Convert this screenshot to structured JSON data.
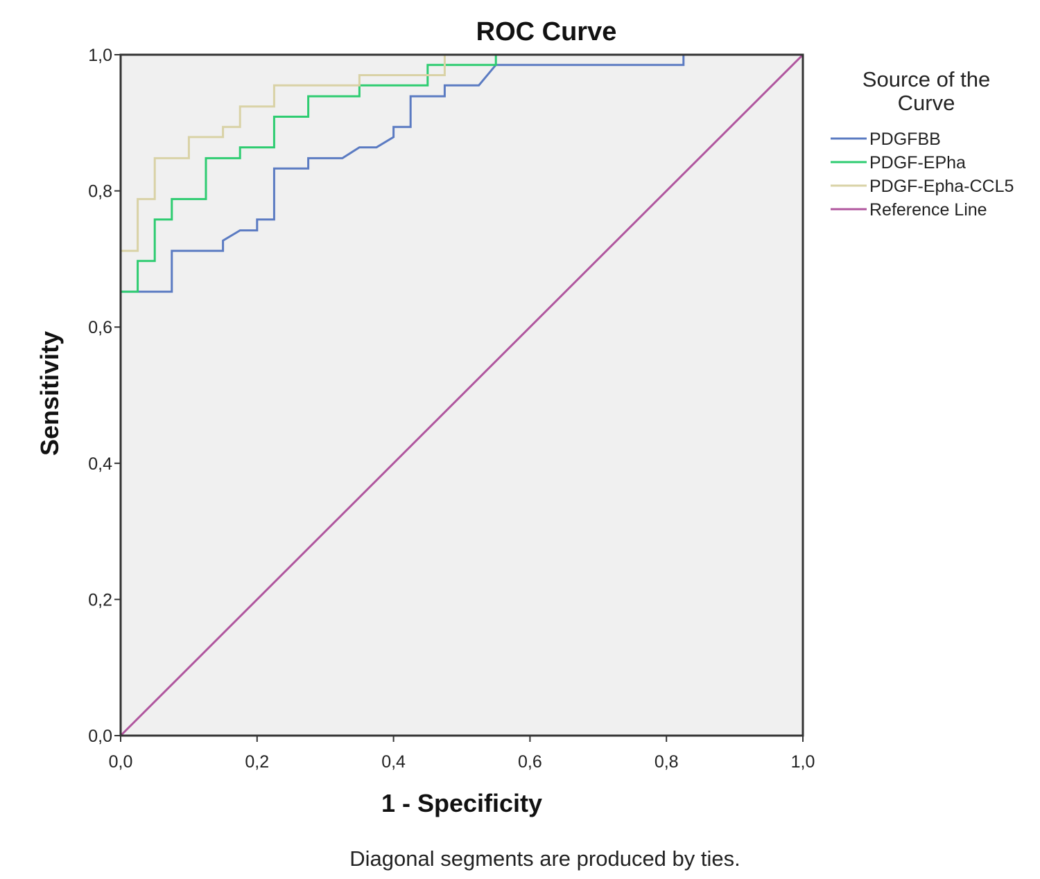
{
  "chart_data": {
    "type": "line",
    "title": "ROC Curve",
    "xlabel": "1 - Specificity",
    "ylabel": "Sensitivity",
    "xlim": [
      0,
      1
    ],
    "ylim": [
      0,
      1
    ],
    "x_ticks": [
      "0,0",
      "0,2",
      "0,4",
      "0,6",
      "0,8",
      "1,0"
    ],
    "y_ticks": [
      "0,0",
      "0,2",
      "0,4",
      "0,6",
      "0,8",
      "1,0"
    ],
    "grid": false,
    "plot_background": "#f0f0f0",
    "legend": {
      "title_lines": [
        "Source of the",
        "Curve"
      ],
      "placement": "right"
    },
    "footnote": "Diagonal segments are produced by ties.",
    "series": [
      {
        "name": "PDGFBB",
        "color": "#5b7bc2",
        "points": [
          [
            0,
            0
          ],
          [
            0,
            0.652
          ],
          [
            0.075,
            0.652
          ],
          [
            0.075,
            0.712
          ],
          [
            0.15,
            0.712
          ],
          [
            0.15,
            0.727
          ],
          [
            0.175,
            0.742
          ],
          [
            0.2,
            0.742
          ],
          [
            0.2,
            0.758
          ],
          [
            0.225,
            0.758
          ],
          [
            0.225,
            0.833
          ],
          [
            0.275,
            0.833
          ],
          [
            0.275,
            0.848
          ],
          [
            0.325,
            0.848
          ],
          [
            0.35,
            0.864
          ],
          [
            0.375,
            0.864
          ],
          [
            0.4,
            0.879
          ],
          [
            0.4,
            0.894
          ],
          [
            0.425,
            0.894
          ],
          [
            0.425,
            0.939
          ],
          [
            0.475,
            0.939
          ],
          [
            0.475,
            0.955
          ],
          [
            0.525,
            0.955
          ],
          [
            0.55,
            0.985
          ],
          [
            0.825,
            0.985
          ],
          [
            0.825,
            1.0
          ],
          [
            1.0,
            1.0
          ]
        ]
      },
      {
        "name": "PDGF-EPha",
        "color": "#2ecc71",
        "points": [
          [
            0,
            0
          ],
          [
            0,
            0.652
          ],
          [
            0.025,
            0.652
          ],
          [
            0.025,
            0.697
          ],
          [
            0.05,
            0.697
          ],
          [
            0.05,
            0.758
          ],
          [
            0.075,
            0.758
          ],
          [
            0.075,
            0.788
          ],
          [
            0.125,
            0.788
          ],
          [
            0.125,
            0.848
          ],
          [
            0.175,
            0.848
          ],
          [
            0.175,
            0.864
          ],
          [
            0.225,
            0.864
          ],
          [
            0.225,
            0.909
          ],
          [
            0.275,
            0.909
          ],
          [
            0.275,
            0.939
          ],
          [
            0.35,
            0.939
          ],
          [
            0.35,
            0.955
          ],
          [
            0.45,
            0.955
          ],
          [
            0.45,
            0.985
          ],
          [
            0.55,
            0.985
          ],
          [
            0.55,
            1.0
          ],
          [
            1.0,
            1.0
          ]
        ]
      },
      {
        "name": "PDGF-Epha-CCL5",
        "color": "#d9d2a6",
        "points": [
          [
            0,
            0
          ],
          [
            0,
            0.712
          ],
          [
            0.025,
            0.712
          ],
          [
            0.025,
            0.788
          ],
          [
            0.05,
            0.788
          ],
          [
            0.05,
            0.848
          ],
          [
            0.1,
            0.848
          ],
          [
            0.1,
            0.879
          ],
          [
            0.15,
            0.879
          ],
          [
            0.15,
            0.894
          ],
          [
            0.175,
            0.894
          ],
          [
            0.175,
            0.924
          ],
          [
            0.225,
            0.924
          ],
          [
            0.225,
            0.955
          ],
          [
            0.35,
            0.955
          ],
          [
            0.35,
            0.97
          ],
          [
            0.475,
            0.97
          ],
          [
            0.475,
            1.0
          ],
          [
            1.0,
            1.0
          ]
        ]
      },
      {
        "name": "Reference Line",
        "color": "#b0569e",
        "points": [
          [
            0,
            0
          ],
          [
            1,
            1
          ]
        ]
      }
    ]
  }
}
